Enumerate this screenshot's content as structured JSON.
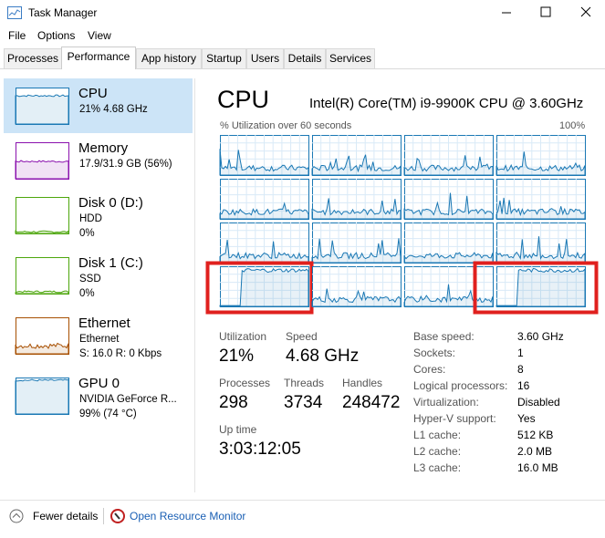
{
  "window": {
    "title": "Task Manager"
  },
  "menu": [
    "File",
    "Options",
    "View"
  ],
  "tabs": [
    "Processes",
    "Performance",
    "App history",
    "Startup",
    "Users",
    "Details",
    "Services"
  ],
  "selected_tab": 1,
  "sidebar": [
    {
      "title": "CPU",
      "lines": [
        "21% 4.68 GHz"
      ],
      "color": "#1a78b4"
    },
    {
      "title": "Memory",
      "lines": [
        "17.9/31.9 GB (56%)"
      ],
      "color": "#8b12ae"
    },
    {
      "title": "Disk 0 (D:)",
      "lines": [
        "HDD",
        "0%"
      ],
      "color": "#4da60c"
    },
    {
      "title": "Disk 1 (C:)",
      "lines": [
        "SSD",
        "0%"
      ],
      "color": "#4da60c"
    },
    {
      "title": "Ethernet",
      "lines": [
        "Ethernet",
        "S: 16.0  R: 0 Kbps"
      ],
      "color": "#a74f01"
    },
    {
      "title": "GPU 0",
      "lines": [
        "NVIDIA GeForce R...",
        "99% (74 °C)"
      ],
      "color": "#1a78b4"
    }
  ],
  "selected_item": 0,
  "header": {
    "title": "CPU",
    "model": "Intel(R) Core(TM) i9-9900K CPU @ 3.60GHz",
    "graph_label": "% Utilization over 60 seconds",
    "graph_max": "100%"
  },
  "stats": [
    {
      "label": "Utilization",
      "value": "21%"
    },
    {
      "label": "Speed",
      "value": "4.68 GHz"
    },
    {
      "label": "Processes",
      "value": "298"
    },
    {
      "label": "Threads",
      "value": "3734"
    },
    {
      "label": "Handles",
      "value": "248472"
    },
    {
      "label": "Up time",
      "value": "3:03:12:05"
    }
  ],
  "details": [
    [
      "Base speed:",
      "3.60 GHz"
    ],
    [
      "Sockets:",
      "1"
    ],
    [
      "Cores:",
      "8"
    ],
    [
      "Logical processors:",
      "16"
    ],
    [
      "Virtualization:",
      "Disabled"
    ],
    [
      "Hyper-V support:",
      "Yes"
    ],
    [
      "L1 cache:",
      "512 KB"
    ],
    [
      "L2 cache:",
      "2.0 MB"
    ],
    [
      "L3 cache:",
      "16.0 MB"
    ]
  ],
  "footer": {
    "fewer": "Fewer details",
    "monitor": "Open Resource Monitor"
  }
}
